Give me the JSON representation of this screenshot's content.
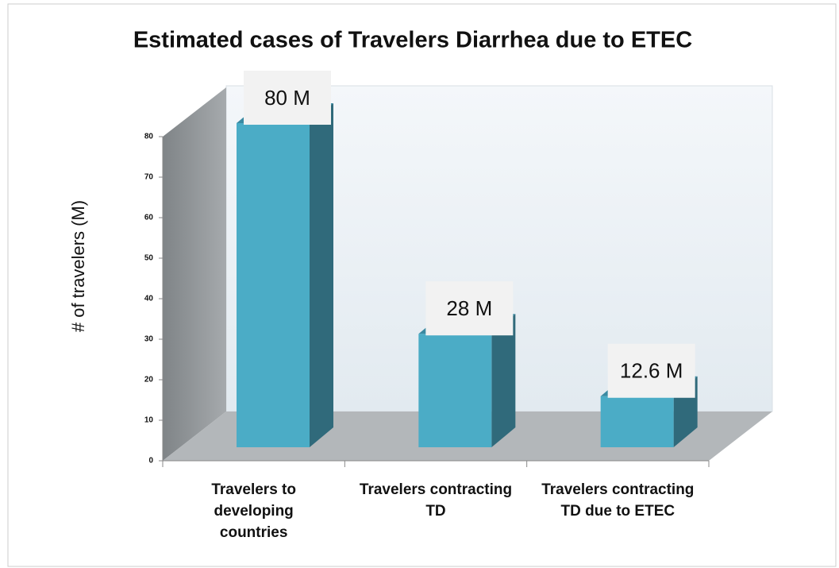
{
  "chart_data": {
    "type": "bar3d",
    "title": "Estimated cases of Travelers Diarrhea due to ETEC",
    "y_label": "# of travelers (M)",
    "categories": [
      "Travelers to developing countries",
      "Travelers contracting TD",
      "Travelers contracting TD due to ETEC"
    ],
    "values": [
      80,
      28,
      12.6
    ],
    "value_labels": [
      "80 M",
      "28 M",
      "12.6 M"
    ],
    "color": "#4bacc6",
    "ylim": [
      0,
      80
    ],
    "yticks": [
      0,
      10,
      20,
      30,
      40,
      50,
      60,
      70,
      80
    ]
  }
}
